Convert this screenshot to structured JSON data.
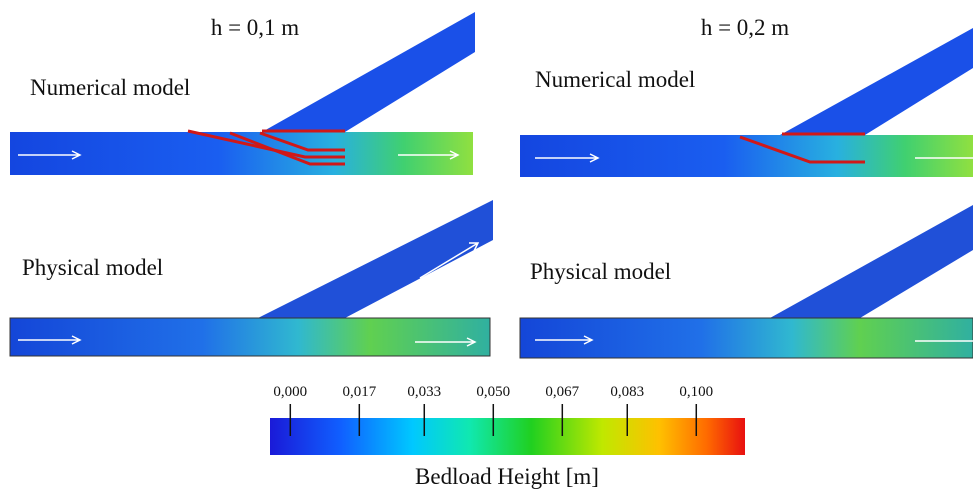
{
  "panels": [
    {
      "heading": "h = 0,1 m",
      "numerical_label": "Numerical model",
      "physical_label": "Physical model"
    },
    {
      "heading": "h = 0,2 m",
      "numerical_label": "Numerical model",
      "physical_label": "Physical model"
    }
  ],
  "colorbar": {
    "title": "Bedload Height [m]",
    "range": [
      -0.005,
      0.112
    ],
    "ticks": [
      {
        "value": 0,
        "label": "0,000"
      },
      {
        "value": 0.017,
        "label": "0,017"
      },
      {
        "value": 0.033,
        "label": "0,033"
      },
      {
        "value": 0.05,
        "label": "0,050"
      },
      {
        "value": 0.067,
        "label": "0,067"
      },
      {
        "value": 0.083,
        "label": "0,083"
      },
      {
        "value": 0.1,
        "label": "0,100"
      }
    ]
  }
}
